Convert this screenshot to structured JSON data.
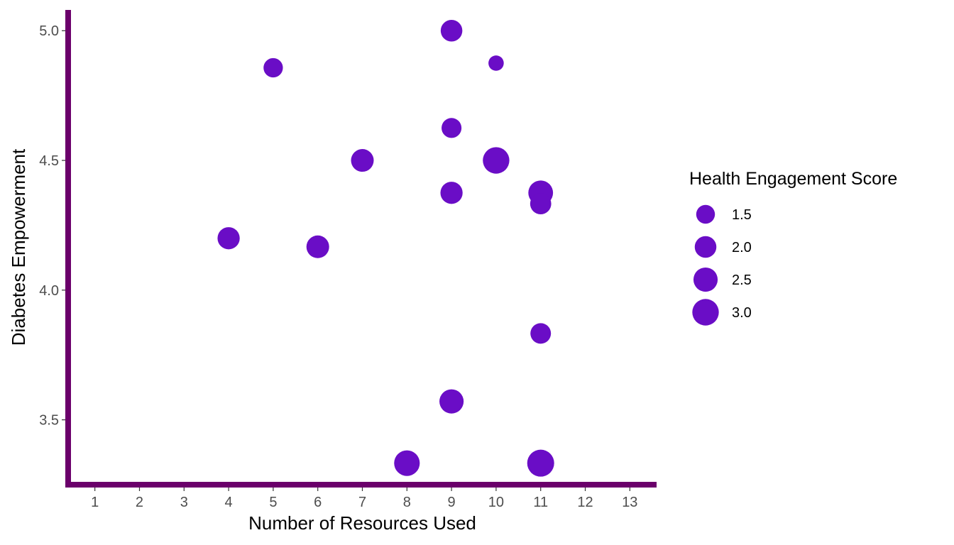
{
  "chart_data": {
    "type": "scatter",
    "title": "",
    "xlabel": "Number of Resources Used",
    "ylabel": "Diabetes Empowerment",
    "xlim": [
      0.4,
      13.6
    ],
    "ylim": [
      3.25,
      5.08
    ],
    "x_ticks": [
      1,
      2,
      3,
      4,
      5,
      6,
      7,
      8,
      9,
      10,
      11,
      12,
      13
    ],
    "y_ticks": [
      3.5,
      4.0,
      4.5,
      5.0
    ],
    "y_tick_labels": [
      "3.5",
      "4.0",
      "4.5",
      "5.0"
    ],
    "grid": false,
    "point_color": "#6A0DC6",
    "axis_color": "#6B006B",
    "size_legend": {
      "title": "Health Engagement Score",
      "placement": "right",
      "values": [
        1.5,
        2.0,
        2.5,
        3.0
      ],
      "labels": [
        "1.5",
        "2.0",
        "2.5",
        "3.0"
      ]
    },
    "points": [
      {
        "x": 4,
        "y": 4.2,
        "size": 2.1
      },
      {
        "x": 5,
        "y": 4.857,
        "size": 1.6
      },
      {
        "x": 6,
        "y": 4.167,
        "size": 2.2
      },
      {
        "x": 7,
        "y": 4.5,
        "size": 2.2
      },
      {
        "x": 8,
        "y": 3.333,
        "size": 2.8
      },
      {
        "x": 9,
        "y": 5.0,
        "size": 2.0
      },
      {
        "x": 9,
        "y": 4.625,
        "size": 1.7
      },
      {
        "x": 9,
        "y": 4.375,
        "size": 2.1
      },
      {
        "x": 9,
        "y": 3.571,
        "size": 2.5
      },
      {
        "x": 10,
        "y": 4.875,
        "size": 1.0
      },
      {
        "x": 10,
        "y": 4.5,
        "size": 3.0
      },
      {
        "x": 11,
        "y": 4.375,
        "size": 2.6
      },
      {
        "x": 11,
        "y": 4.333,
        "size": 1.9
      },
      {
        "x": 11,
        "y": 3.833,
        "size": 1.8
      },
      {
        "x": 11,
        "y": 3.333,
        "size": 3.1
      }
    ]
  }
}
